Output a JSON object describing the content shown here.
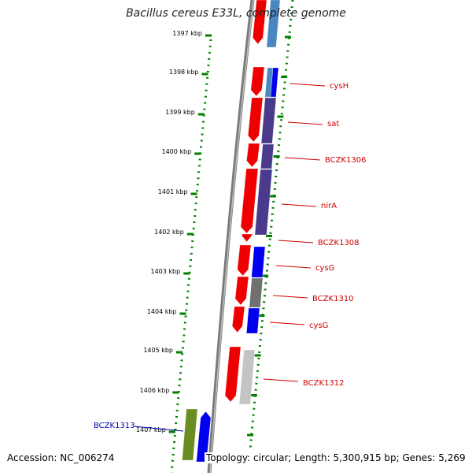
{
  "title": "Bacillus cereus E33L, complete genome",
  "accession": "Accession: NC_006274",
  "topology": "Topology: circular; Length: 5,300,915 bp; Genes: 5,269",
  "colors": {
    "forward": "#ee0000",
    "reverse": "#0000ee",
    "lightblue": "#4a86c0",
    "indigo": "#4a3a8c",
    "gray": "#707070",
    "lightgray": "#c4c4c4",
    "olive": "#6a8c20",
    "label": "#cc0000",
    "outer_label": "#0000aa",
    "ticks": "#008000",
    "axis": "#808080"
  },
  "kbp_ticks": [
    {
      "label": "1397 kbp"
    },
    {
      "label": "1398 kbp"
    },
    {
      "label": "1399 kbp"
    },
    {
      "label": "1400 kbp"
    },
    {
      "label": "1401 kbp"
    },
    {
      "label": "1402 kbp"
    },
    {
      "label": "1403 kbp"
    },
    {
      "label": "1404 kbp"
    },
    {
      "label": "1405 kbp"
    },
    {
      "label": "1406 kbp"
    },
    {
      "label": "1407 kbp"
    }
  ],
  "gene_labels": [
    {
      "text": "cysH"
    },
    {
      "text": "sat"
    },
    {
      "text": "BCZK1306"
    },
    {
      "text": "nirA"
    },
    {
      "text": "BCZK1308"
    },
    {
      "text": "cysG"
    },
    {
      "text": "BCZK1310"
    },
    {
      "text": "cysG"
    },
    {
      "text": "BCZK1312"
    }
  ],
  "outer_label": "BCZK1313"
}
